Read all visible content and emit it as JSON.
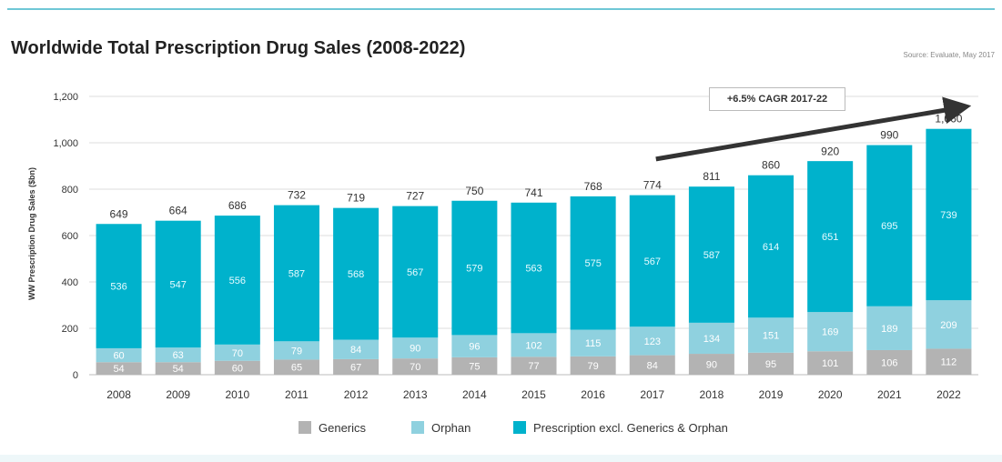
{
  "page": {
    "title": "Worldwide Total Prescription Drug Sales (2008-2022)",
    "source": "Source: Evaluate, May 2017"
  },
  "colors": {
    "generics": "#b3b3b3",
    "orphan": "#8fd1df",
    "prescription": "#00b2cc",
    "accent_rule": "#6fc7d6",
    "arrow": "#333333"
  },
  "chart_data": {
    "type": "bar",
    "stacked": true,
    "title": "Worldwide Total Prescription Drug Sales (2008-2022)",
    "xlabel": "",
    "ylabel": "WW Prescription Drug Sales ($bn)",
    "ylim": [
      0,
      1200
    ],
    "yticks": [
      0,
      200,
      400,
      600,
      800,
      1000,
      1200
    ],
    "ytick_labels": [
      "0",
      "200",
      "400",
      "600",
      "800",
      "1,000",
      "1,200"
    ],
    "grid": true,
    "legend_position": "bottom",
    "categories": [
      "2008",
      "2009",
      "2010",
      "2011",
      "2012",
      "2013",
      "2014",
      "2015",
      "2016",
      "2017",
      "2018",
      "2019",
      "2020",
      "2021",
      "2022"
    ],
    "series": [
      {
        "name": "Generics",
        "color_key": "generics",
        "values": [
          54,
          54,
          60,
          65,
          67,
          70,
          75,
          77,
          79,
          84,
          90,
          95,
          101,
          106,
          112
        ]
      },
      {
        "name": "Orphan",
        "color_key": "orphan",
        "values": [
          60,
          63,
          70,
          79,
          84,
          90,
          96,
          102,
          115,
          123,
          134,
          151,
          169,
          189,
          209
        ]
      },
      {
        "name": "Prescription excl. Generics & Orphan",
        "color_key": "prescription",
        "values": [
          536,
          547,
          556,
          587,
          568,
          567,
          579,
          563,
          575,
          567,
          587,
          614,
          651,
          695,
          739
        ]
      }
    ],
    "totals": [
      649,
      664,
      686,
      732,
      719,
      727,
      750,
      741,
      768,
      774,
      811,
      860,
      920,
      990,
      1060
    ],
    "total_labels": [
      "649",
      "664",
      "686",
      "732",
      "719",
      "727",
      "750",
      "741",
      "768",
      "774",
      "811",
      "860",
      "920",
      "990",
      "1,060"
    ],
    "annotation": {
      "text": "+6.5% CAGR 2017-22",
      "arrow_from_category": "2017",
      "arrow_to_category": "2022"
    }
  }
}
